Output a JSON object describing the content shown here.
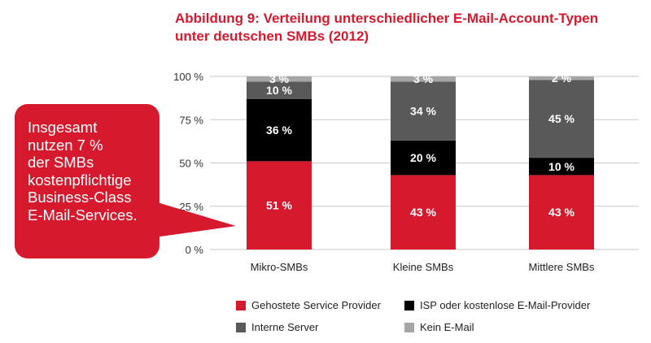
{
  "chart_title": {
    "line1": "Abbildung 9: Verteilung unterschiedlicher E-Mail-Account-Typen",
    "line2": "unter deutschen SMBs (2012)"
  },
  "callout": {
    "lines": [
      "Insgesamt",
      "nutzen 7 %",
      "der SMBs",
      "kostenpflichtige",
      "Business-Class",
      "E-Mail-Services."
    ]
  },
  "colors": {
    "accent_red": "#d7192d",
    "black": "#000000",
    "dark_gray": "#595959",
    "light_gray": "#a6a6a6"
  },
  "chart_data": {
    "type": "bar",
    "stacked": true,
    "title": "Abbildung 9: Verteilung unterschiedlicher E-Mail-Account-Typen unter deutschen SMBs (2012)",
    "categories": [
      "Mikro-SMBs",
      "Kleine SMBs",
      "Mittlere SMBs"
    ],
    "series": [
      {
        "name": "Gehostete Service Provider",
        "color": "#d7192d",
        "values": [
          51,
          43,
          43
        ],
        "labels": [
          "51 %",
          "43 %",
          "43 %"
        ]
      },
      {
        "name": "ISP oder kostenlose E-Mail-Provider",
        "color": "#000000",
        "values": [
          36,
          20,
          10
        ],
        "labels": [
          "36 %",
          "20 %",
          "10 %"
        ]
      },
      {
        "name": "Interne Server",
        "color": "#595959",
        "values": [
          10,
          34,
          45
        ],
        "labels": [
          "10 %",
          "34 %",
          "45 %"
        ]
      },
      {
        "name": "Kein E-Mail",
        "color": "#a6a6a6",
        "values": [
          3,
          3,
          2
        ],
        "labels": [
          "3 %",
          "3 %",
          "2 %"
        ]
      }
    ],
    "yticks": [
      0,
      25,
      50,
      75,
      100
    ],
    "ytick_labels": [
      "0 %",
      "25 %",
      "50 %",
      "75 %",
      "100 %"
    ],
    "ylim": [
      0,
      100
    ],
    "xlabel": "",
    "ylabel": "",
    "legend_position": "bottom"
  }
}
